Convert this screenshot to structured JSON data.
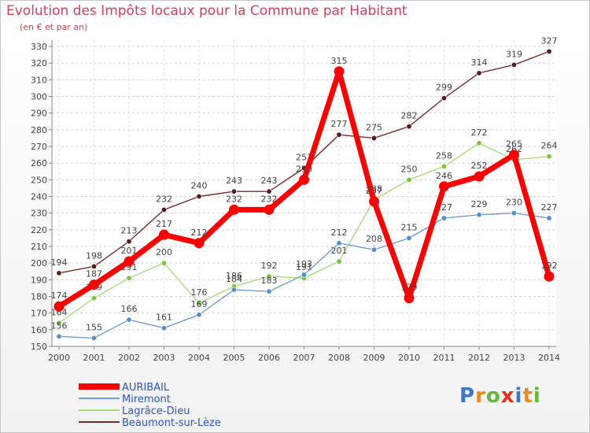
{
  "title": "Evolution des Impôts locaux pour la Commune par Habitant",
  "subtitle": "(en € et par an)",
  "logo": {
    "text": "Proxiti",
    "colors": [
      "#3b78c8",
      "#f08a1e",
      "#62b83a",
      "#e0301e",
      "#3b78c8",
      "#f08a1e",
      "#62b83a"
    ]
  },
  "chart_data": {
    "type": "line",
    "title": "Evolution des Impôts locaux pour la Commune par Habitant",
    "subtitle": "(en € et par an)",
    "x": [
      "2000",
      "2001",
      "2002",
      "2003",
      "2004",
      "2005",
      "2006",
      "2007",
      "2008",
      "2009",
      "2010",
      "2011",
      "2012",
      "2013",
      "2014"
    ],
    "ylim": [
      150,
      330
    ],
    "yticks": [
      150,
      160,
      170,
      180,
      190,
      200,
      210,
      220,
      230,
      240,
      250,
      260,
      270,
      280,
      290,
      300,
      310,
      320,
      330
    ],
    "legend_position": "bottom-left",
    "series": [
      {
        "name": "Beaumont-sur-Lèze",
        "color": "#7a2a2a",
        "marker": "#5a1a1a",
        "width": 1.4,
        "values": [
          194,
          198,
          213,
          232,
          240,
          243,
          243,
          257,
          277,
          275,
          282,
          299,
          314,
          319,
          327
        ]
      },
      {
        "name": "Lagrâce-Dieu",
        "color": "#a8de7a",
        "marker": "#78c43c",
        "width": 1.4,
        "values": [
          164,
          179,
          191,
          200,
          176,
          186,
          192,
          191,
          201,
          238,
          250,
          258,
          272,
          262,
          264
        ]
      },
      {
        "name": "Miremont",
        "color": "#6e9ed6",
        "marker": "#4f8fd0",
        "width": 1.4,
        "values": [
          156,
          155,
          166,
          161,
          169,
          184,
          183,
          193,
          212,
          208,
          215,
          227,
          229,
          230,
          227
        ]
      },
      {
        "name": "AURIBAIL",
        "color": "#ff0000",
        "marker": "#ff0000",
        "width": 7,
        "values": [
          174,
          187,
          201,
          217,
          212,
          232,
          232,
          250,
          315,
          237,
          179,
          246,
          252,
          265,
          192
        ]
      }
    ],
    "legend": [
      "AURIBAIL",
      "Miremont",
      "Lagrâce-Dieu",
      "Beaumont-sur-Lèze"
    ]
  }
}
